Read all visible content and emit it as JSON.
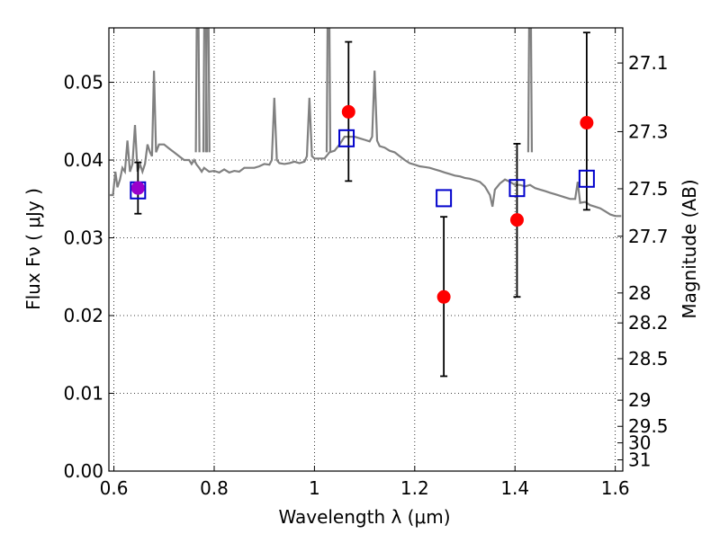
{
  "chart_data": {
    "type": "scatter",
    "xlabel": "Wavelength  λ (μm)",
    "ylabel_left": "Flux  Fν  ( μJy )",
    "ylabel_right": "Magnitude (AB)",
    "xlim": [
      0.59,
      1.615
    ],
    "ylim": [
      0.0,
      0.057
    ],
    "x_ticks": [
      0.6,
      0.8,
      1.0,
      1.2,
      1.4,
      1.6
    ],
    "x_tick_labels": [
      "0.6",
      "0.8",
      "1",
      "1.2",
      "1.4",
      "1.6"
    ],
    "y_ticks": [
      0.0,
      0.01,
      0.02,
      0.03,
      0.04,
      0.05
    ],
    "y_tick_labels": [
      "0.00",
      "0.01",
      "0.02",
      "0.03",
      "0.04",
      "0.05"
    ],
    "right_ticks": [
      "27.1",
      "27.3",
      "27.5",
      "27.7",
      "28",
      "28.2",
      "28.5",
      "29",
      "29.5",
      "30",
      "31"
    ],
    "grid": true,
    "series": [
      {
        "kind": "line",
        "color": "#808080",
        "points": [
          [
            0.592,
            0.0355
          ],
          [
            0.598,
            0.0355
          ],
          [
            0.603,
            0.0385
          ],
          [
            0.607,
            0.0365
          ],
          [
            0.612,
            0.0375
          ],
          [
            0.617,
            0.039
          ],
          [
            0.622,
            0.0385
          ],
          [
            0.627,
            0.0425
          ],
          [
            0.632,
            0.0385
          ],
          [
            0.637,
            0.0395
          ],
          [
            0.642,
            0.0445
          ],
          [
            0.647,
            0.0385
          ],
          [
            0.652,
            0.0395
          ],
          [
            0.657,
            0.0385
          ],
          [
            0.662,
            0.0395
          ],
          [
            0.667,
            0.042
          ],
          [
            0.672,
            0.041
          ],
          [
            0.676,
            0.0405
          ],
          [
            0.68,
            0.0515
          ],
          [
            0.684,
            0.041
          ],
          [
            0.69,
            0.042
          ],
          [
            0.7,
            0.042
          ],
          [
            0.71,
            0.0415
          ],
          [
            0.72,
            0.041
          ],
          [
            0.73,
            0.0405
          ],
          [
            0.74,
            0.04
          ],
          [
            0.75,
            0.04
          ],
          [
            0.755,
            0.0395
          ],
          [
            0.76,
            0.04
          ],
          [
            0.765,
            0.0394
          ],
          [
            0.77,
            0.039
          ],
          [
            0.775,
            0.0385
          ],
          [
            0.78,
            0.039
          ],
          [
            0.79,
            0.0385
          ],
          [
            0.8,
            0.0386
          ],
          [
            0.81,
            0.0384
          ],
          [
            0.82,
            0.0388
          ],
          [
            0.83,
            0.0384
          ],
          [
            0.84,
            0.0386
          ],
          [
            0.85,
            0.0385
          ],
          [
            0.86,
            0.039
          ],
          [
            0.87,
            0.039
          ],
          [
            0.88,
            0.039
          ],
          [
            0.89,
            0.0392
          ],
          [
            0.9,
            0.0395
          ],
          [
            0.91,
            0.0394
          ],
          [
            0.915,
            0.04
          ],
          [
            0.92,
            0.048
          ],
          [
            0.925,
            0.04
          ],
          [
            0.93,
            0.0396
          ],
          [
            0.94,
            0.0395
          ],
          [
            0.95,
            0.0396
          ],
          [
            0.96,
            0.0398
          ],
          [
            0.97,
            0.0396
          ],
          [
            0.98,
            0.0398
          ],
          [
            0.985,
            0.0405
          ],
          [
            0.99,
            0.048
          ],
          [
            0.995,
            0.0405
          ],
          [
            1.0,
            0.0402
          ],
          [
            1.01,
            0.0402
          ],
          [
            1.02,
            0.0402
          ],
          [
            1.03,
            0.041
          ],
          [
            1.04,
            0.0412
          ],
          [
            1.05,
            0.042
          ],
          [
            1.06,
            0.043
          ],
          [
            1.07,
            0.043
          ],
          [
            1.08,
            0.043
          ],
          [
            1.09,
            0.0428
          ],
          [
            1.1,
            0.0426
          ],
          [
            1.11,
            0.0424
          ],
          [
            1.115,
            0.043
          ],
          [
            1.12,
            0.0515
          ],
          [
            1.125,
            0.0425
          ],
          [
            1.13,
            0.0418
          ],
          [
            1.14,
            0.0416
          ],
          [
            1.15,
            0.0412
          ],
          [
            1.16,
            0.041
          ],
          [
            1.17,
            0.0405
          ],
          [
            1.18,
            0.04
          ],
          [
            1.19,
            0.0396
          ],
          [
            1.2,
            0.0394
          ],
          [
            1.21,
            0.0392
          ],
          [
            1.22,
            0.0391
          ],
          [
            1.23,
            0.039
          ],
          [
            1.24,
            0.0388
          ],
          [
            1.25,
            0.0386
          ],
          [
            1.26,
            0.0384
          ],
          [
            1.27,
            0.0382
          ],
          [
            1.28,
            0.038
          ],
          [
            1.29,
            0.0379
          ],
          [
            1.3,
            0.0377
          ],
          [
            1.31,
            0.0376
          ],
          [
            1.32,
            0.0374
          ],
          [
            1.33,
            0.0372
          ],
          [
            1.34,
            0.0366
          ],
          [
            1.35,
            0.0355
          ],
          [
            1.355,
            0.034
          ],
          [
            1.36,
            0.0362
          ],
          [
            1.37,
            0.037
          ],
          [
            1.38,
            0.0375
          ],
          [
            1.39,
            0.0372
          ],
          [
            1.4,
            0.0368
          ],
          [
            1.41,
            0.0368
          ],
          [
            1.42,
            0.0366
          ],
          [
            1.43,
            0.0368
          ],
          [
            1.44,
            0.0364
          ],
          [
            1.45,
            0.0362
          ],
          [
            1.46,
            0.036
          ],
          [
            1.47,
            0.0358
          ],
          [
            1.48,
            0.0356
          ],
          [
            1.49,
            0.0354
          ],
          [
            1.5,
            0.0352
          ],
          [
            1.51,
            0.035
          ],
          [
            1.52,
            0.035
          ],
          [
            1.525,
            0.0372
          ],
          [
            1.53,
            0.0345
          ],
          [
            1.54,
            0.0346
          ],
          [
            1.55,
            0.0342
          ],
          [
            1.56,
            0.034
          ],
          [
            1.57,
            0.0338
          ],
          [
            1.58,
            0.0334
          ],
          [
            1.59,
            0.033
          ],
          [
            1.6,
            0.0328
          ],
          [
            1.612,
            0.0328
          ]
        ],
        "spikes": [
          0.767,
          0.782,
          0.787,
          1.028,
          1.43
        ]
      },
      {
        "kind": "scatter",
        "marker": "circle",
        "color": "#ff0000",
        "points": [
          {
            "x": 0.648,
            "y": 0.0364,
            "yerr": [
              0.0331,
              0.0397
            ],
            "color": "#9900cc"
          },
          {
            "x": 1.068,
            "y": 0.0462,
            "yerr": [
              0.0373,
              0.0552
            ]
          },
          {
            "x": 1.258,
            "y": 0.0224,
            "yerr": [
              0.0122,
              0.0327
            ]
          },
          {
            "x": 1.404,
            "y": 0.0323,
            "yerr": [
              0.0224,
              0.0421
            ]
          },
          {
            "x": 1.543,
            "y": 0.0448,
            "yerr": [
              0.0336,
              0.0564
            ]
          }
        ]
      },
      {
        "kind": "scatter",
        "marker": "open-square",
        "color": "#0000cc",
        "points": [
          {
            "x": 0.648,
            "y": 0.0361
          },
          {
            "x": 1.064,
            "y": 0.0428
          },
          {
            "x": 1.258,
            "y": 0.0351
          },
          {
            "x": 1.404,
            "y": 0.0364
          },
          {
            "x": 1.543,
            "y": 0.0376
          }
        ]
      }
    ]
  }
}
